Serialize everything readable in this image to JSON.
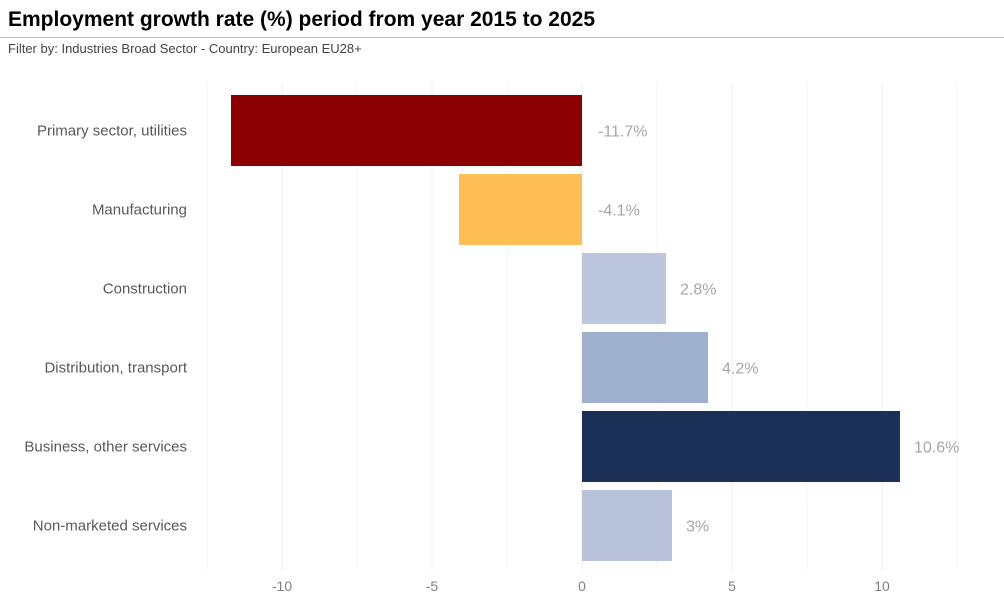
{
  "header": {
    "title": "Employment growth rate (%) period from year 2015 to 2025",
    "subtitle": "Filter by: Industries Broad Sector - Country: European EU28+"
  },
  "chart_data": {
    "type": "bar",
    "orientation": "horizontal",
    "categories": [
      "Primary sector, utilities",
      "Manufacturing",
      "Construction",
      "Distribution, transport",
      "Business, other services",
      "Non-marketed services"
    ],
    "values": [
      -11.7,
      -4.1,
      2.8,
      4.2,
      10.6,
      3
    ],
    "data_labels": [
      "-11.7%",
      "-4.1%",
      "2.8%",
      "4.2%",
      "10.6%",
      "3%"
    ],
    "colors": [
      "#8b0000",
      "#ffbf57",
      "#bcc6dc",
      "#9fb0cf",
      "#1b2f57",
      "#b8c3da"
    ],
    "xticks": [
      -10,
      -5,
      0,
      5,
      10
    ],
    "xlim": [
      -12.5,
      12.5
    ],
    "grid": "vertical",
    "legend": "none"
  }
}
